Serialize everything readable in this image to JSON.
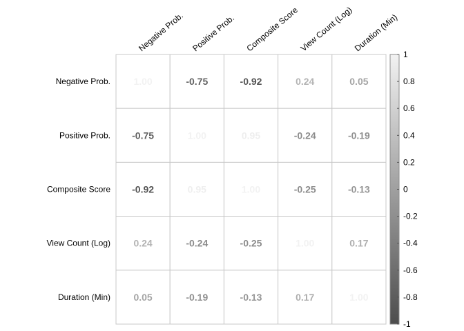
{
  "chart_data": {
    "type": "heatmap",
    "title": "",
    "variables": [
      "Negative Prob.",
      "Positive Prob.",
      "Composite Score",
      "View Count (Log)",
      "Duration (Min)"
    ],
    "matrix": [
      [
        1.0,
        -0.75,
        -0.92,
        0.24,
        0.05
      ],
      [
        -0.75,
        1.0,
        0.95,
        -0.24,
        -0.19
      ],
      [
        -0.92,
        0.95,
        1.0,
        -0.25,
        -0.13
      ],
      [
        0.24,
        -0.24,
        -0.25,
        1.0,
        0.17
      ],
      [
        0.05,
        -0.19,
        -0.13,
        0.17,
        1.0
      ]
    ],
    "value_labels": [
      [
        "1.00",
        "-0.75",
        "-0.92",
        "0.24",
        "0.05"
      ],
      [
        "-0.75",
        "1.00",
        "0.95",
        "-0.24",
        "-0.19"
      ],
      [
        "-0.92",
        "0.95",
        "1.00",
        "-0.25",
        "-0.13"
      ],
      [
        "0.24",
        "-0.24",
        "-0.25",
        "1.00",
        "0.17"
      ],
      [
        "0.05",
        "-0.19",
        "-0.13",
        "0.17",
        "1.00"
      ]
    ],
    "colorbar": {
      "range": [
        -1,
        1
      ],
      "ticks": [
        "1",
        "0.8",
        "0.6",
        "0.4",
        "0.2",
        "0",
        "-0.2",
        "-0.4",
        "-0.6",
        "-0.8",
        "-1"
      ],
      "colors": {
        "low": "#4d4d4d",
        "high": "#f2f2f2"
      }
    },
    "grid": true,
    "legend": "right"
  }
}
